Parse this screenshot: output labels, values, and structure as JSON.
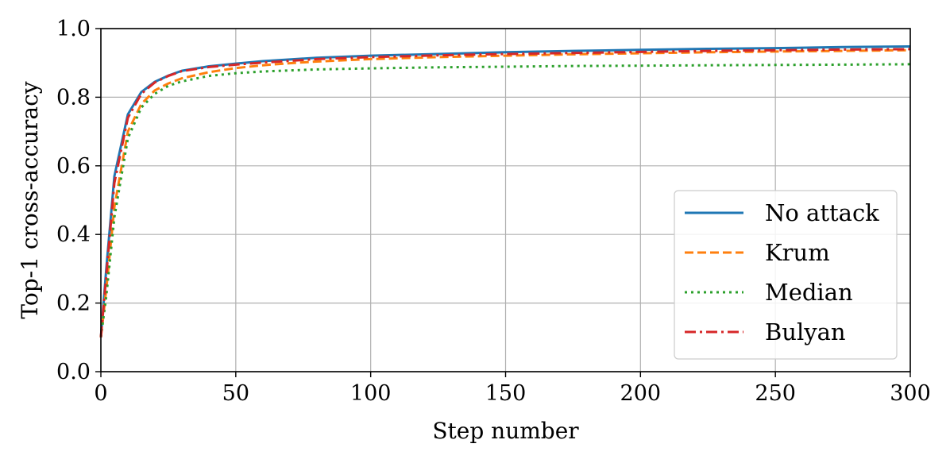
{
  "chart_data": {
    "type": "line",
    "title": "",
    "xlabel": "Step number",
    "ylabel": "Top-1 cross-accuracy",
    "xlim": [
      0,
      300
    ],
    "ylim": [
      0.0,
      1.0
    ],
    "xticks": [
      0,
      50,
      100,
      150,
      200,
      250,
      300
    ],
    "yticks": [
      0.0,
      0.2,
      0.4,
      0.6,
      0.8,
      1.0
    ],
    "xtick_labels": [
      "0",
      "50",
      "100",
      "150",
      "200",
      "250",
      "300"
    ],
    "ytick_labels": [
      "0.0",
      "0.2",
      "0.4",
      "0.6",
      "0.8",
      "1.0"
    ],
    "grid": true,
    "legend_position": "lower-right",
    "x": [
      0,
      2,
      5,
      10,
      15,
      20,
      25,
      30,
      40,
      50,
      60,
      70,
      80,
      100,
      125,
      150,
      175,
      200,
      225,
      250,
      275,
      300
    ],
    "series": [
      {
        "name": "No attack",
        "color": "#1f77b4",
        "dash": "solid",
        "values": [
          0.1,
          0.3,
          0.57,
          0.75,
          0.815,
          0.845,
          0.863,
          0.877,
          0.89,
          0.898,
          0.905,
          0.91,
          0.915,
          0.921,
          0.926,
          0.931,
          0.935,
          0.938,
          0.941,
          0.943,
          0.946,
          0.948
        ]
      },
      {
        "name": "Krum",
        "color": "#ff7f0e",
        "dash": "dashed",
        "values": [
          0.1,
          0.24,
          0.48,
          0.7,
          0.78,
          0.82,
          0.84,
          0.855,
          0.873,
          0.885,
          0.893,
          0.899,
          0.904,
          0.911,
          0.917,
          0.921,
          0.925,
          0.928,
          0.931,
          0.933,
          0.935,
          0.937
        ]
      },
      {
        "name": "Median",
        "color": "#2ca02c",
        "dash": "dotted",
        "values": [
          0.1,
          0.22,
          0.45,
          0.68,
          0.77,
          0.81,
          0.833,
          0.846,
          0.862,
          0.87,
          0.875,
          0.878,
          0.881,
          0.884,
          0.887,
          0.889,
          0.891,
          0.892,
          0.893,
          0.894,
          0.895,
          0.896
        ]
      },
      {
        "name": "Bulyan",
        "color": "#d62728",
        "dash": "dashdot",
        "values": [
          0.1,
          0.28,
          0.55,
          0.74,
          0.81,
          0.843,
          0.862,
          0.876,
          0.888,
          0.895,
          0.901,
          0.906,
          0.911,
          0.917,
          0.922,
          0.926,
          0.929,
          0.932,
          0.935,
          0.937,
          0.939,
          0.94
        ]
      }
    ]
  }
}
